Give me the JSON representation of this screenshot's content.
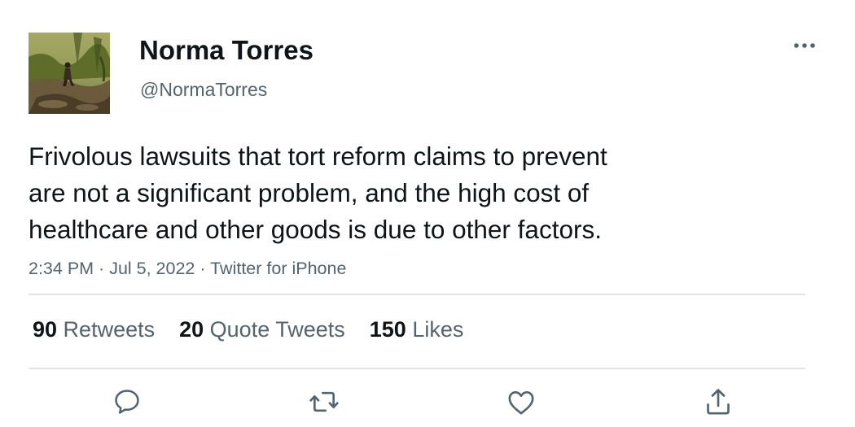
{
  "author": {
    "display_name": "Norma Torres",
    "handle": "@NormaTorres",
    "avatar": "profile-photo"
  },
  "tweet": {
    "lines": [
      "Frivolous lawsuits that tort reform claims to prevent",
      "are not a significant problem, and the high cost of",
      "healthcare and other goods is due to other factors."
    ],
    "time": "2:34 PM",
    "sep1": " · ",
    "date": "Jul 5, 2022",
    "sep2": " · ",
    "source": "Twitter for iPhone"
  },
  "stats": {
    "retweets_count": "90",
    "retweets_label": " Retweets",
    "quotes_count": "20",
    "quotes_label": " Quote Tweets",
    "likes_count": "150",
    "likes_label": " Likes"
  },
  "icons": {
    "more": "more-horizontal-icon",
    "reply": "reply-icon",
    "retweet": "retweet-icon",
    "like": "heart-icon",
    "share": "share-icon"
  },
  "colors": {
    "text": "#0f1419",
    "secondary": "#536471",
    "divider": "#e1e4e6",
    "icon": "#536471"
  }
}
